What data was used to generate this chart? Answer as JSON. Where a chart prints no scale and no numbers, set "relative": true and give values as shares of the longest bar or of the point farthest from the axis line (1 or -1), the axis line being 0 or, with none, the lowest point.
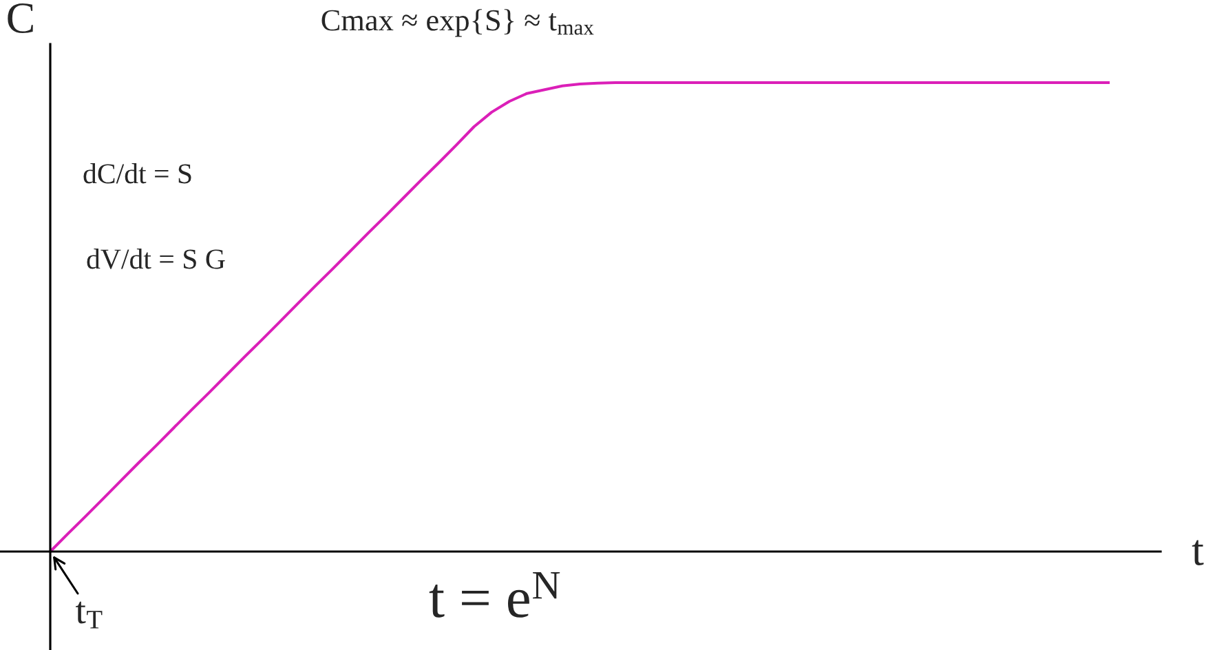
{
  "chart_data": {
    "type": "line",
    "relative": true,
    "title": "Cmax ≈ exp{S} ≈ t$_{max}$",
    "xlabel": "t",
    "ylabel": "C",
    "line_style": "solid",
    "categories": [
      null,
      null,
      null,
      null,
      null,
      null,
      null,
      null,
      null,
      null,
      null,
      null,
      null,
      null,
      null,
      null,
      null,
      null,
      null,
      null,
      null,
      null,
      null,
      null,
      null,
      null,
      null,
      null,
      null,
      null,
      null,
      null,
      null,
      null,
      null,
      null,
      null,
      null,
      null,
      null,
      null,
      null,
      null,
      null,
      null,
      null,
      null,
      null,
      null,
      null,
      null,
      null,
      null,
      null,
      null,
      null,
      null,
      null,
      null,
      null,
      null
    ],
    "series": [
      {
        "color": "#db1fb8",
        "values": [
          0,
          0.038,
          0.075,
          0.113,
          0.151,
          0.189,
          0.226,
          0.264,
          0.302,
          0.339,
          0.377,
          0.415,
          0.452,
          0.49,
          0.528,
          0.566,
          0.603,
          0.641,
          0.679,
          0.716,
          0.754,
          0.792,
          0.829,
          0.867,
          0.906,
          0.937,
          0.96,
          0.977,
          0.985,
          0.993,
          0.997,
          0.999,
          1,
          1,
          1,
          1,
          1,
          1,
          1,
          1,
          1,
          1,
          1,
          1,
          1,
          1,
          1,
          1,
          1,
          1,
          1,
          1,
          1,
          1,
          1,
          1,
          1,
          1,
          1,
          1,
          1
        ]
      }
    ],
    "annotations": [
      "dC/dt = S",
      "dV/dt = S G",
      "t = e$^{N}$",
      "t$_{T}$"
    ]
  }
}
